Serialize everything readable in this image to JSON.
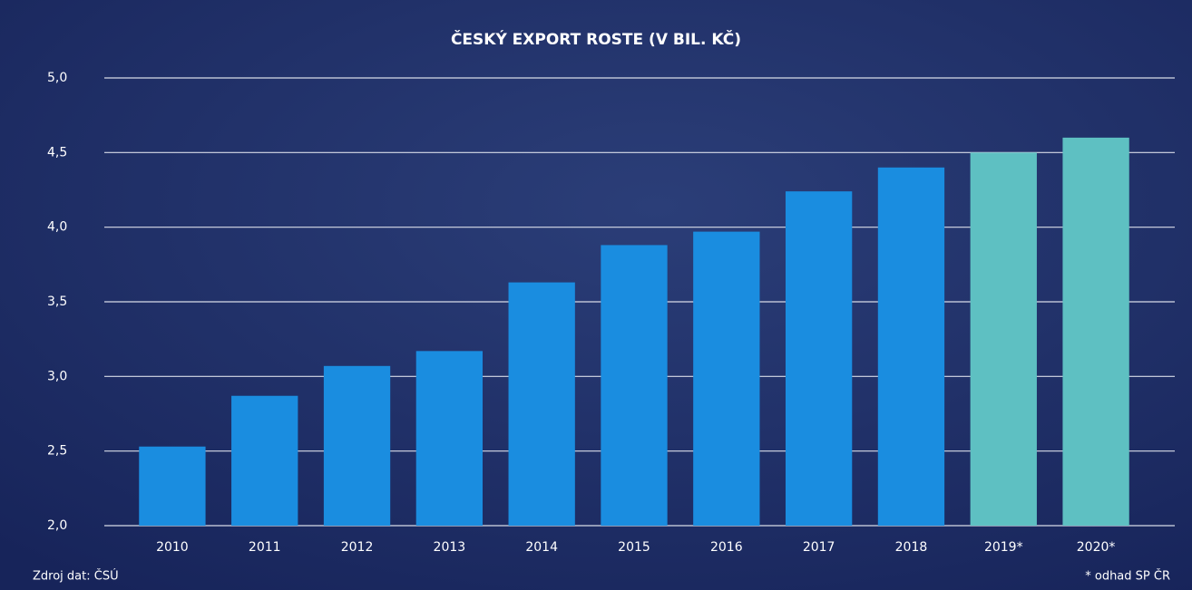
{
  "chart_data": {
    "type": "bar",
    "title": "ČESKÝ EXPORT ROSTE (V BIL. KČ)",
    "categories": [
      "2010",
      "2011",
      "2012",
      "2013",
      "2014",
      "2015",
      "2016",
      "2017",
      "2018",
      "2019*",
      "2020*"
    ],
    "values": [
      2.53,
      2.87,
      3.07,
      3.17,
      3.63,
      3.88,
      3.97,
      4.24,
      4.4,
      4.5,
      4.6
    ],
    "colors": [
      "#1a8de0",
      "#1a8de0",
      "#1a8de0",
      "#1a8de0",
      "#1a8de0",
      "#1a8de0",
      "#1a8de0",
      "#1a8de0",
      "#1a8de0",
      "#5ec0c2",
      "#5ec0c2"
    ],
    "ylim": [
      2.0,
      5.0
    ],
    "yticks": [
      {
        "value": 2.0,
        "label": "2,0"
      },
      {
        "value": 2.5,
        "label": "2,5"
      },
      {
        "value": 3.0,
        "label": "3,0"
      },
      {
        "value": 3.5,
        "label": "3,5"
      },
      {
        "value": 4.0,
        "label": "4,0"
      },
      {
        "value": 4.5,
        "label": "4,5"
      },
      {
        "value": 5.0,
        "label": "5,0"
      }
    ],
    "grid": true,
    "source": "Zdroj dat: ČSÚ",
    "note": "* odhad SP ČR"
  }
}
